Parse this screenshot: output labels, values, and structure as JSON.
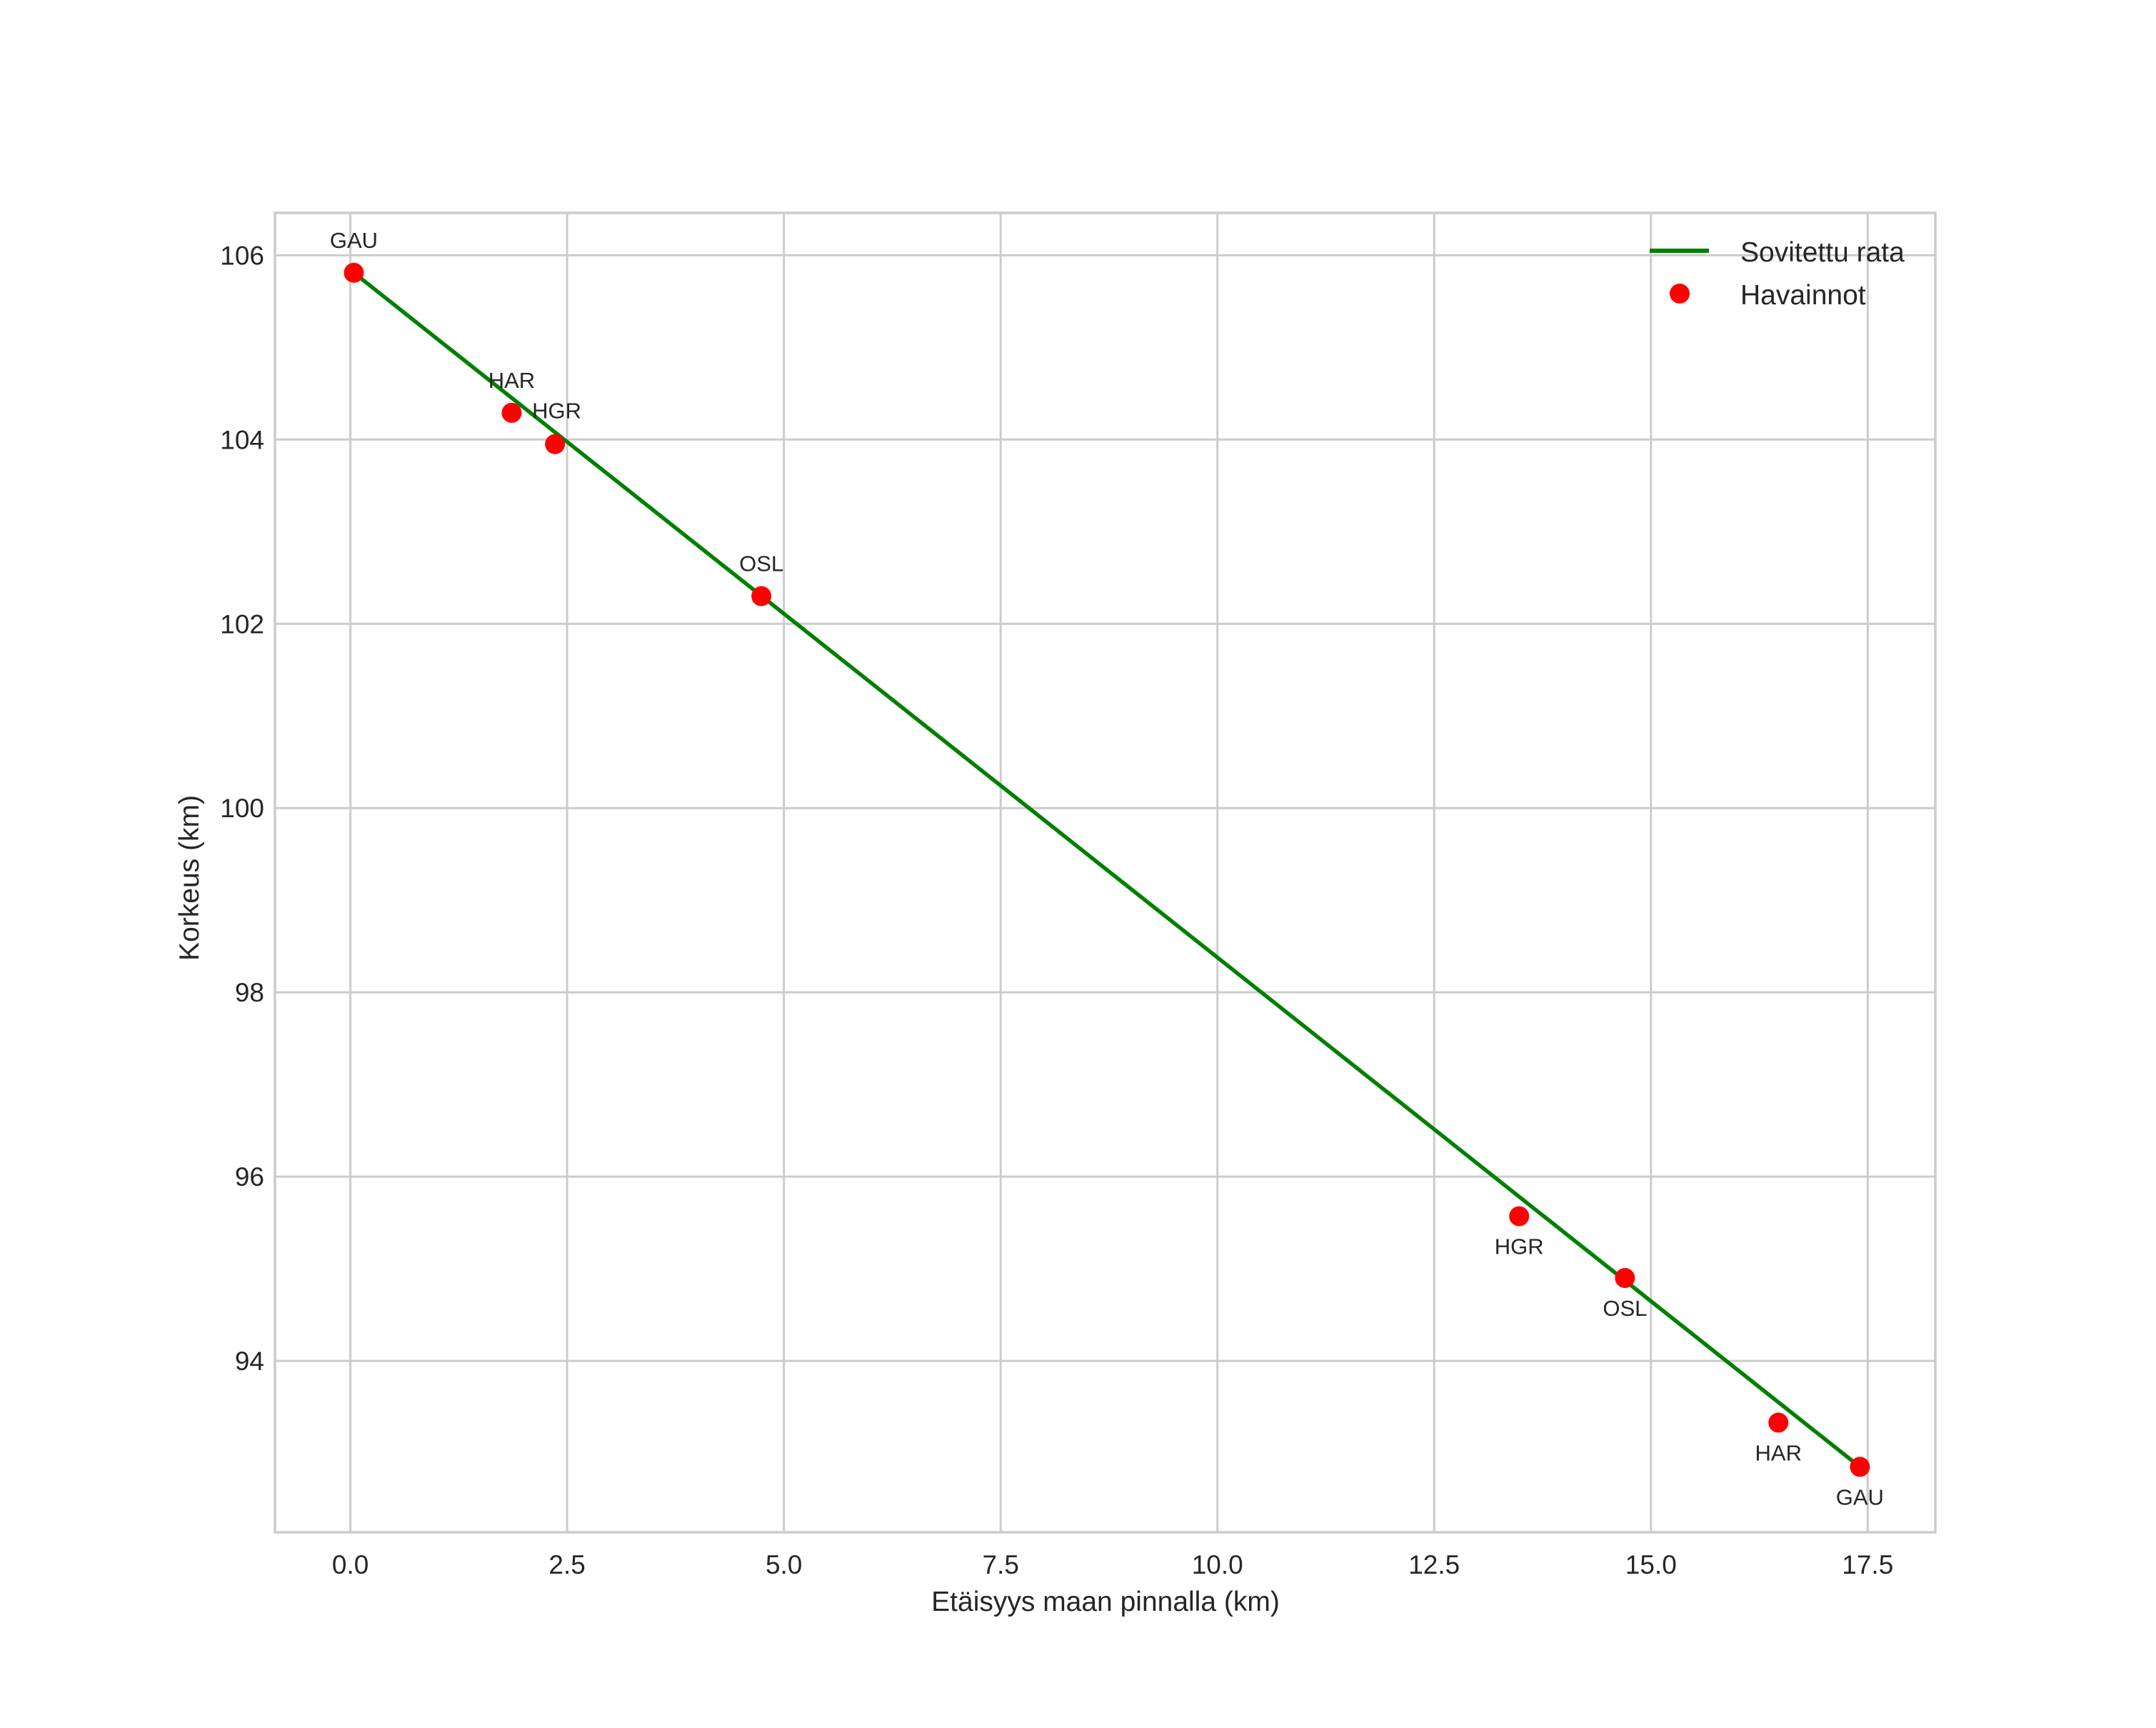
{
  "chart_data": {
    "type": "line+scatter",
    "title": "",
    "xlabel": "Etäisyys maan pinnalla (km)",
    "ylabel": "Korkeus (km)",
    "xlim": [
      -0.87,
      18.28
    ],
    "ylim": [
      92.14,
      106.46
    ],
    "x_ticks": [
      0.0,
      2.5,
      5.0,
      7.5,
      10.0,
      12.5,
      15.0,
      17.5
    ],
    "x_tick_labels": [
      "0.0",
      "2.5",
      "5.0",
      "7.5",
      "10.0",
      "12.5",
      "15.0",
      "17.5"
    ],
    "y_ticks": [
      94,
      96,
      98,
      100,
      102,
      104,
      106
    ],
    "y_tick_labels": [
      "94",
      "96",
      "98",
      "100",
      "102",
      "104",
      "106"
    ],
    "grid": true,
    "legend_position": "upper right",
    "series": [
      {
        "name": "Sovitettu rata",
        "kind": "line",
        "color": "#008000",
        "x": [
          0.04,
          17.41
        ],
        "y": [
          105.81,
          92.85
        ]
      },
      {
        "name": "Havainnot",
        "kind": "scatter",
        "color": "#ff0000",
        "points": [
          {
            "label": "GAU",
            "x": 0.04,
            "y": 105.81,
            "label_pos": "above"
          },
          {
            "label": "HAR",
            "x": 1.86,
            "y": 104.29,
            "label_pos": "above"
          },
          {
            "label": "HGR",
            "x": 2.36,
            "y": 103.95,
            "label_pos": "above-right"
          },
          {
            "label": "OSL",
            "x": 4.74,
            "y": 102.3,
            "label_pos": "above"
          },
          {
            "label": "HGR",
            "x": 13.48,
            "y": 95.57,
            "label_pos": "below"
          },
          {
            "label": "OSL",
            "x": 14.7,
            "y": 94.9,
            "label_pos": "below"
          },
          {
            "label": "HAR",
            "x": 16.47,
            "y": 93.33,
            "label_pos": "below"
          },
          {
            "label": "GAU",
            "x": 17.41,
            "y": 92.85,
            "label_pos": "below"
          }
        ]
      }
    ]
  },
  "legend": {
    "items": [
      {
        "label": "Sovitettu rata",
        "marker": "line",
        "color": "#008000"
      },
      {
        "label": "Havainnot",
        "marker": "dot",
        "color": "#ff0000"
      }
    ]
  },
  "colors": {
    "grid": "#cccccc",
    "text": "#262626",
    "background": "#ffffff"
  }
}
